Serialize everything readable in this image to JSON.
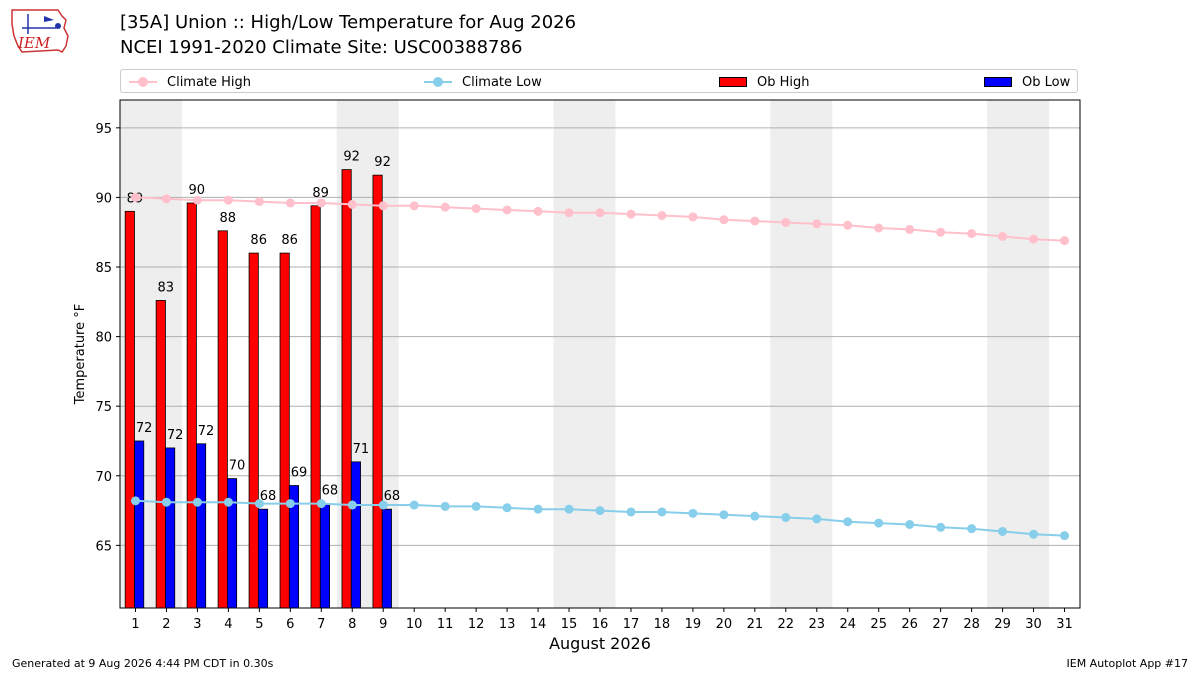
{
  "header": {
    "logo_text": "IEM",
    "title_line1": "[35A] Union :: High/Low Temperature for Aug 2026",
    "title_line2": "NCEI 1991-2020 Climate Site: USC00388786"
  },
  "legend": {
    "climate_high": "Climate High",
    "climate_low": "Climate Low",
    "ob_high": "Ob High",
    "ob_low": "Ob Low"
  },
  "footer": {
    "left": "Generated at 9 Aug 2026 4:44 PM CDT in 0.30s",
    "right": "IEM Autoplot App #17"
  },
  "colors": {
    "climate_high": "#FFC0CB",
    "climate_low": "#87CEEB",
    "ob_high": "#FF0000",
    "ob_low": "#0000FF",
    "weekend_shade": "#EEEEEE",
    "grid": "#B0B0B0"
  },
  "chart_data": {
    "type": "bar",
    "xlabel": "August 2026",
    "ylabel": "Temperature °F",
    "ylim": [
      60.5,
      97
    ],
    "yticks": [
      65,
      70,
      75,
      80,
      85,
      90,
      95
    ],
    "xticks": [
      1,
      2,
      3,
      4,
      5,
      6,
      7,
      8,
      9,
      10,
      11,
      12,
      13,
      14,
      15,
      16,
      17,
      18,
      19,
      20,
      21,
      22,
      23,
      24,
      25,
      26,
      27,
      28,
      29,
      30,
      31
    ],
    "grid": "horizontal",
    "legend_position": "top",
    "shaded_weekend_days": [
      [
        1,
        2
      ],
      [
        8,
        9
      ],
      [
        15,
        16
      ],
      [
        22,
        23
      ],
      [
        29,
        30
      ]
    ],
    "ob_high": {
      "days": [
        1,
        2,
        3,
        4,
        5,
        6,
        7,
        8,
        9
      ],
      "values": [
        89,
        82.6,
        89.6,
        87.6,
        86,
        86,
        89.4,
        92,
        91.6
      ],
      "labels": [
        "89",
        "83",
        "90",
        "88",
        "86",
        "86",
        "89",
        "92",
        "92"
      ]
    },
    "ob_low": {
      "days": [
        1,
        2,
        3,
        4,
        5,
        6,
        7,
        8,
        9
      ],
      "values": [
        72.5,
        72,
        72.3,
        69.8,
        67.6,
        69.3,
        68,
        71,
        67.6
      ],
      "labels": [
        "72",
        "72",
        "72",
        "70",
        "68",
        "69",
        "68",
        "71",
        "68"
      ]
    },
    "climate_high": {
      "days": [
        1,
        2,
        3,
        4,
        5,
        6,
        7,
        8,
        9,
        10,
        11,
        12,
        13,
        14,
        15,
        16,
        17,
        18,
        19,
        20,
        21,
        22,
        23,
        24,
        25,
        26,
        27,
        28,
        29,
        30,
        31
      ],
      "values": [
        90.0,
        89.9,
        89.8,
        89.8,
        89.7,
        89.6,
        89.6,
        89.5,
        89.4,
        89.4,
        89.3,
        89.2,
        89.1,
        89.0,
        88.9,
        88.9,
        88.8,
        88.7,
        88.6,
        88.4,
        88.3,
        88.2,
        88.1,
        88.0,
        87.8,
        87.7,
        87.5,
        87.4,
        87.2,
        87.0,
        86.9
      ]
    },
    "climate_low": {
      "days": [
        1,
        2,
        3,
        4,
        5,
        6,
        7,
        8,
        9,
        10,
        11,
        12,
        13,
        14,
        15,
        16,
        17,
        18,
        19,
        20,
        21,
        22,
        23,
        24,
        25,
        26,
        27,
        28,
        29,
        30,
        31
      ],
      "values": [
        68.2,
        68.1,
        68.1,
        68.1,
        68.0,
        68.0,
        68.0,
        67.9,
        67.9,
        67.9,
        67.8,
        67.8,
        67.7,
        67.6,
        67.6,
        67.5,
        67.4,
        67.4,
        67.3,
        67.2,
        67.1,
        67.0,
        66.9,
        66.7,
        66.6,
        66.5,
        66.3,
        66.2,
        66.0,
        65.8,
        65.7
      ]
    }
  }
}
